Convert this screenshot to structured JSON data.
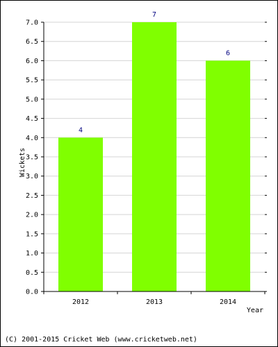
{
  "chart_data": {
    "type": "bar",
    "categories": [
      "2012",
      "2013",
      "2014"
    ],
    "values": [
      4,
      7,
      6
    ],
    "data_labels": [
      "4",
      "7",
      "6"
    ],
    "title": "",
    "xlabel": "Year",
    "ylabel": "Wickets",
    "ylim": [
      0,
      7
    ],
    "y_ticks": [
      "0.0",
      "0.5",
      "1.0",
      "1.5",
      "2.0",
      "2.5",
      "3.0",
      "3.5",
      "4.0",
      "4.5",
      "5.0",
      "5.5",
      "6.0",
      "6.5",
      "7.0"
    ],
    "grid": true,
    "legend": "none"
  },
  "colors": {
    "bar": "#80ff00",
    "grid": "#d4d4d4",
    "axis": "#000000",
    "data_label": "#000080"
  },
  "footer": {
    "copyright": "(C) 2001-2015 Cricket Web (www.cricketweb.net)"
  }
}
